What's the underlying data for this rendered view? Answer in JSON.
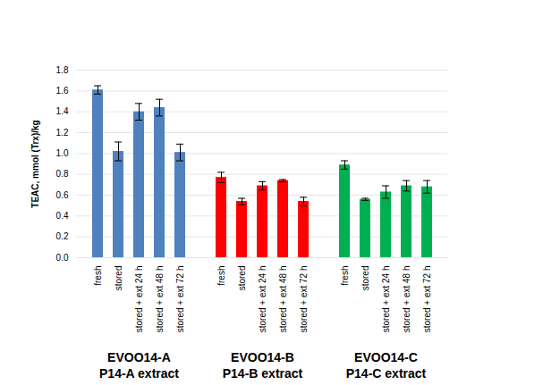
{
  "chart_data": {
    "type": "bar",
    "y_label": "TEAC, mmol (Trx)/kg",
    "categories": [
      "fresh",
      "stored",
      "stored + ext 24 h",
      "stored + ext 48 h",
      "stored + ext 72 h"
    ],
    "series": [
      {
        "name": "EVOO14-A",
        "subtitle": "P14-A extract",
        "color": "#4f81bd",
        "values": [
          1.61,
          1.02,
          1.4,
          1.44,
          1.01
        ],
        "errors": [
          0.04,
          0.09,
          0.08,
          0.08,
          0.08
        ]
      },
      {
        "name": "EVOO14-B",
        "subtitle": "P14-B extract",
        "color": "#ff0000",
        "values": [
          0.77,
          0.54,
          0.69,
          0.74,
          0.54
        ],
        "errors": [
          0.05,
          0.03,
          0.04,
          0.01,
          0.04
        ]
      },
      {
        "name": "EVOO14-C",
        "subtitle": "P14-C extract",
        "color": "#00b050",
        "values": [
          0.89,
          0.56,
          0.63,
          0.69,
          0.68
        ],
        "errors": [
          0.04,
          0.01,
          0.06,
          0.05,
          0.06
        ]
      }
    ],
    "ylim": [
      0,
      1.8
    ],
    "yticks": [
      {
        "value": 0,
        "label": "0.0"
      },
      0.2,
      0.4,
      0.6,
      0.8,
      {
        "value": 1,
        "label": "1.0"
      },
      1.2,
      1.4,
      1.6,
      1.8
    ],
    "grid": true
  }
}
